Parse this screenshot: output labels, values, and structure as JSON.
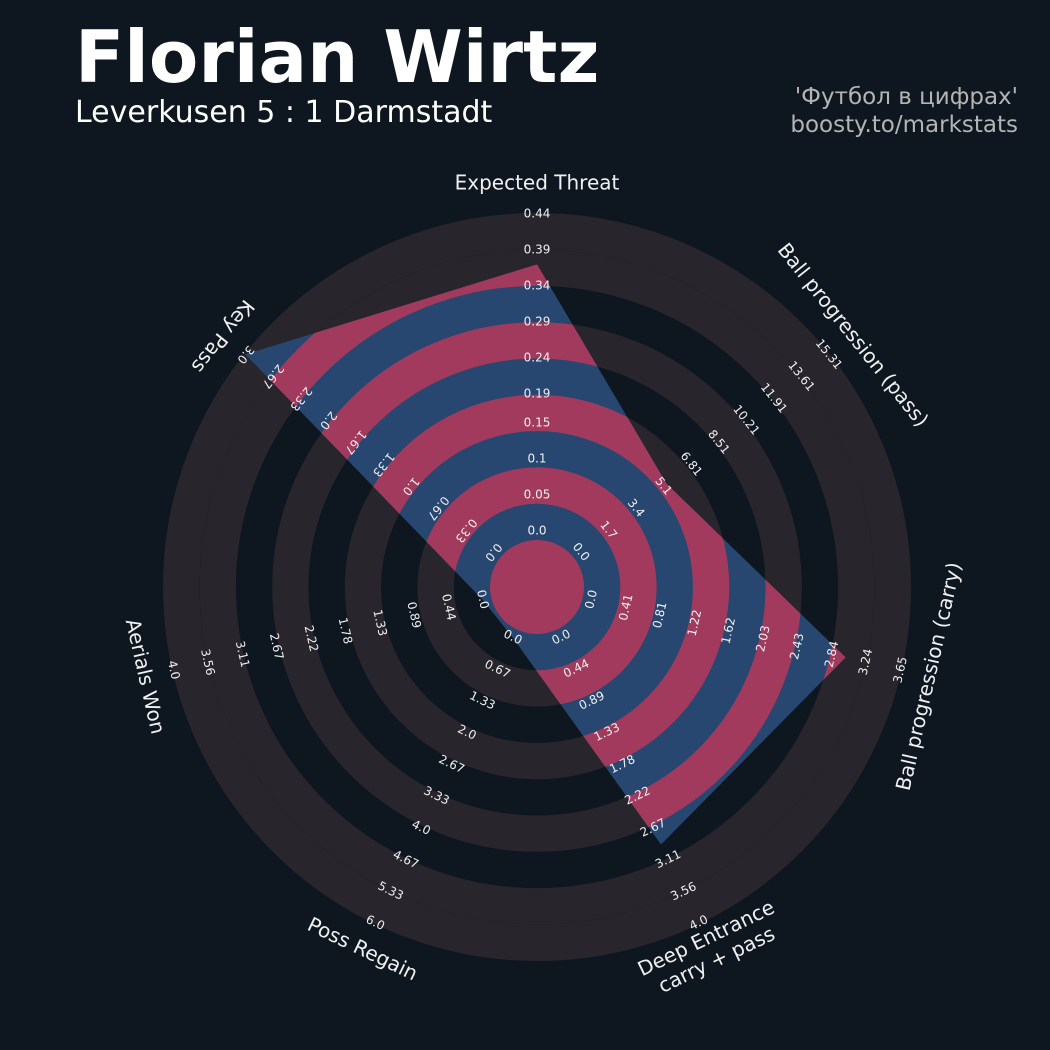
{
  "chart_data": {
    "type": "radar",
    "title": "Florian Wirtz",
    "subtitle": "Leverkusen 5 : 1 Darmstadt",
    "credits": [
      "'Футбол в цифрах'",
      "boosty.to/markstats"
    ],
    "colors": {
      "background": "#0e171f",
      "rings": "#28252c",
      "radar": "#274771",
      "radar_rings": "#a23a5e"
    },
    "axes": [
      {
        "name": [
          "Expected Threat"
        ],
        "ticks": [
          {
            "value": 0,
            "label": "0.0"
          },
          0.05,
          0.1,
          0.15,
          0.19,
          0.24,
          0.29,
          0.34,
          0.39,
          0.44
        ]
      },
      {
        "name": [
          "Ball progression (pass)"
        ],
        "ticks": [
          {
            "value": 0,
            "label": "0.0"
          },
          1.7,
          3.4,
          5.1,
          6.81,
          8.51,
          10.21,
          11.91,
          13.61,
          15.31
        ]
      },
      {
        "name": [
          "Ball progression (carry)"
        ],
        "ticks": [
          {
            "value": 0,
            "label": "0.0"
          },
          0.41,
          0.81,
          1.22,
          1.62,
          2.03,
          2.43,
          2.84,
          3.24,
          3.65
        ]
      },
      {
        "name": [
          "Deep Entrance",
          "carry + pass"
        ],
        "ticks": [
          {
            "value": 0,
            "label": "0.0"
          },
          0.44,
          0.89,
          1.33,
          1.78,
          2.22,
          2.67,
          3.11,
          3.56,
          {
            "value": 4,
            "label": "4.0"
          }
        ]
      },
      {
        "name": [
          "Poss Regain"
        ],
        "ticks": [
          {
            "value": 0,
            "label": "0.0"
          },
          0.67,
          1.33,
          {
            "value": 2,
            "label": "2.0"
          },
          2.67,
          3.33,
          {
            "value": 4,
            "label": "4.0"
          },
          4.67,
          5.33,
          {
            "value": 6,
            "label": "6.0"
          }
        ]
      },
      {
        "name": [
          "Aerials Won"
        ],
        "ticks": [
          {
            "value": 0,
            "label": "0.0"
          },
          0.44,
          0.89,
          1.33,
          1.78,
          2.22,
          2.67,
          3.11,
          3.56,
          {
            "value": 4,
            "label": "4.0"
          }
        ]
      },
      {
        "name": [
          "Key Pass"
        ],
        "ticks": [
          {
            "value": 0,
            "label": "0.0"
          },
          0.33,
          0.67,
          {
            "value": 1,
            "label": "1.0"
          },
          1.33,
          1.67,
          {
            "value": 2,
            "label": "2.0"
          },
          2.33,
          2.67,
          {
            "value": 3,
            "label": "3.0"
          }
        ]
      }
    ],
    "values": [
      0.37,
      5.3,
      3.0,
      2.9,
      0,
      0,
      3.0
    ]
  }
}
